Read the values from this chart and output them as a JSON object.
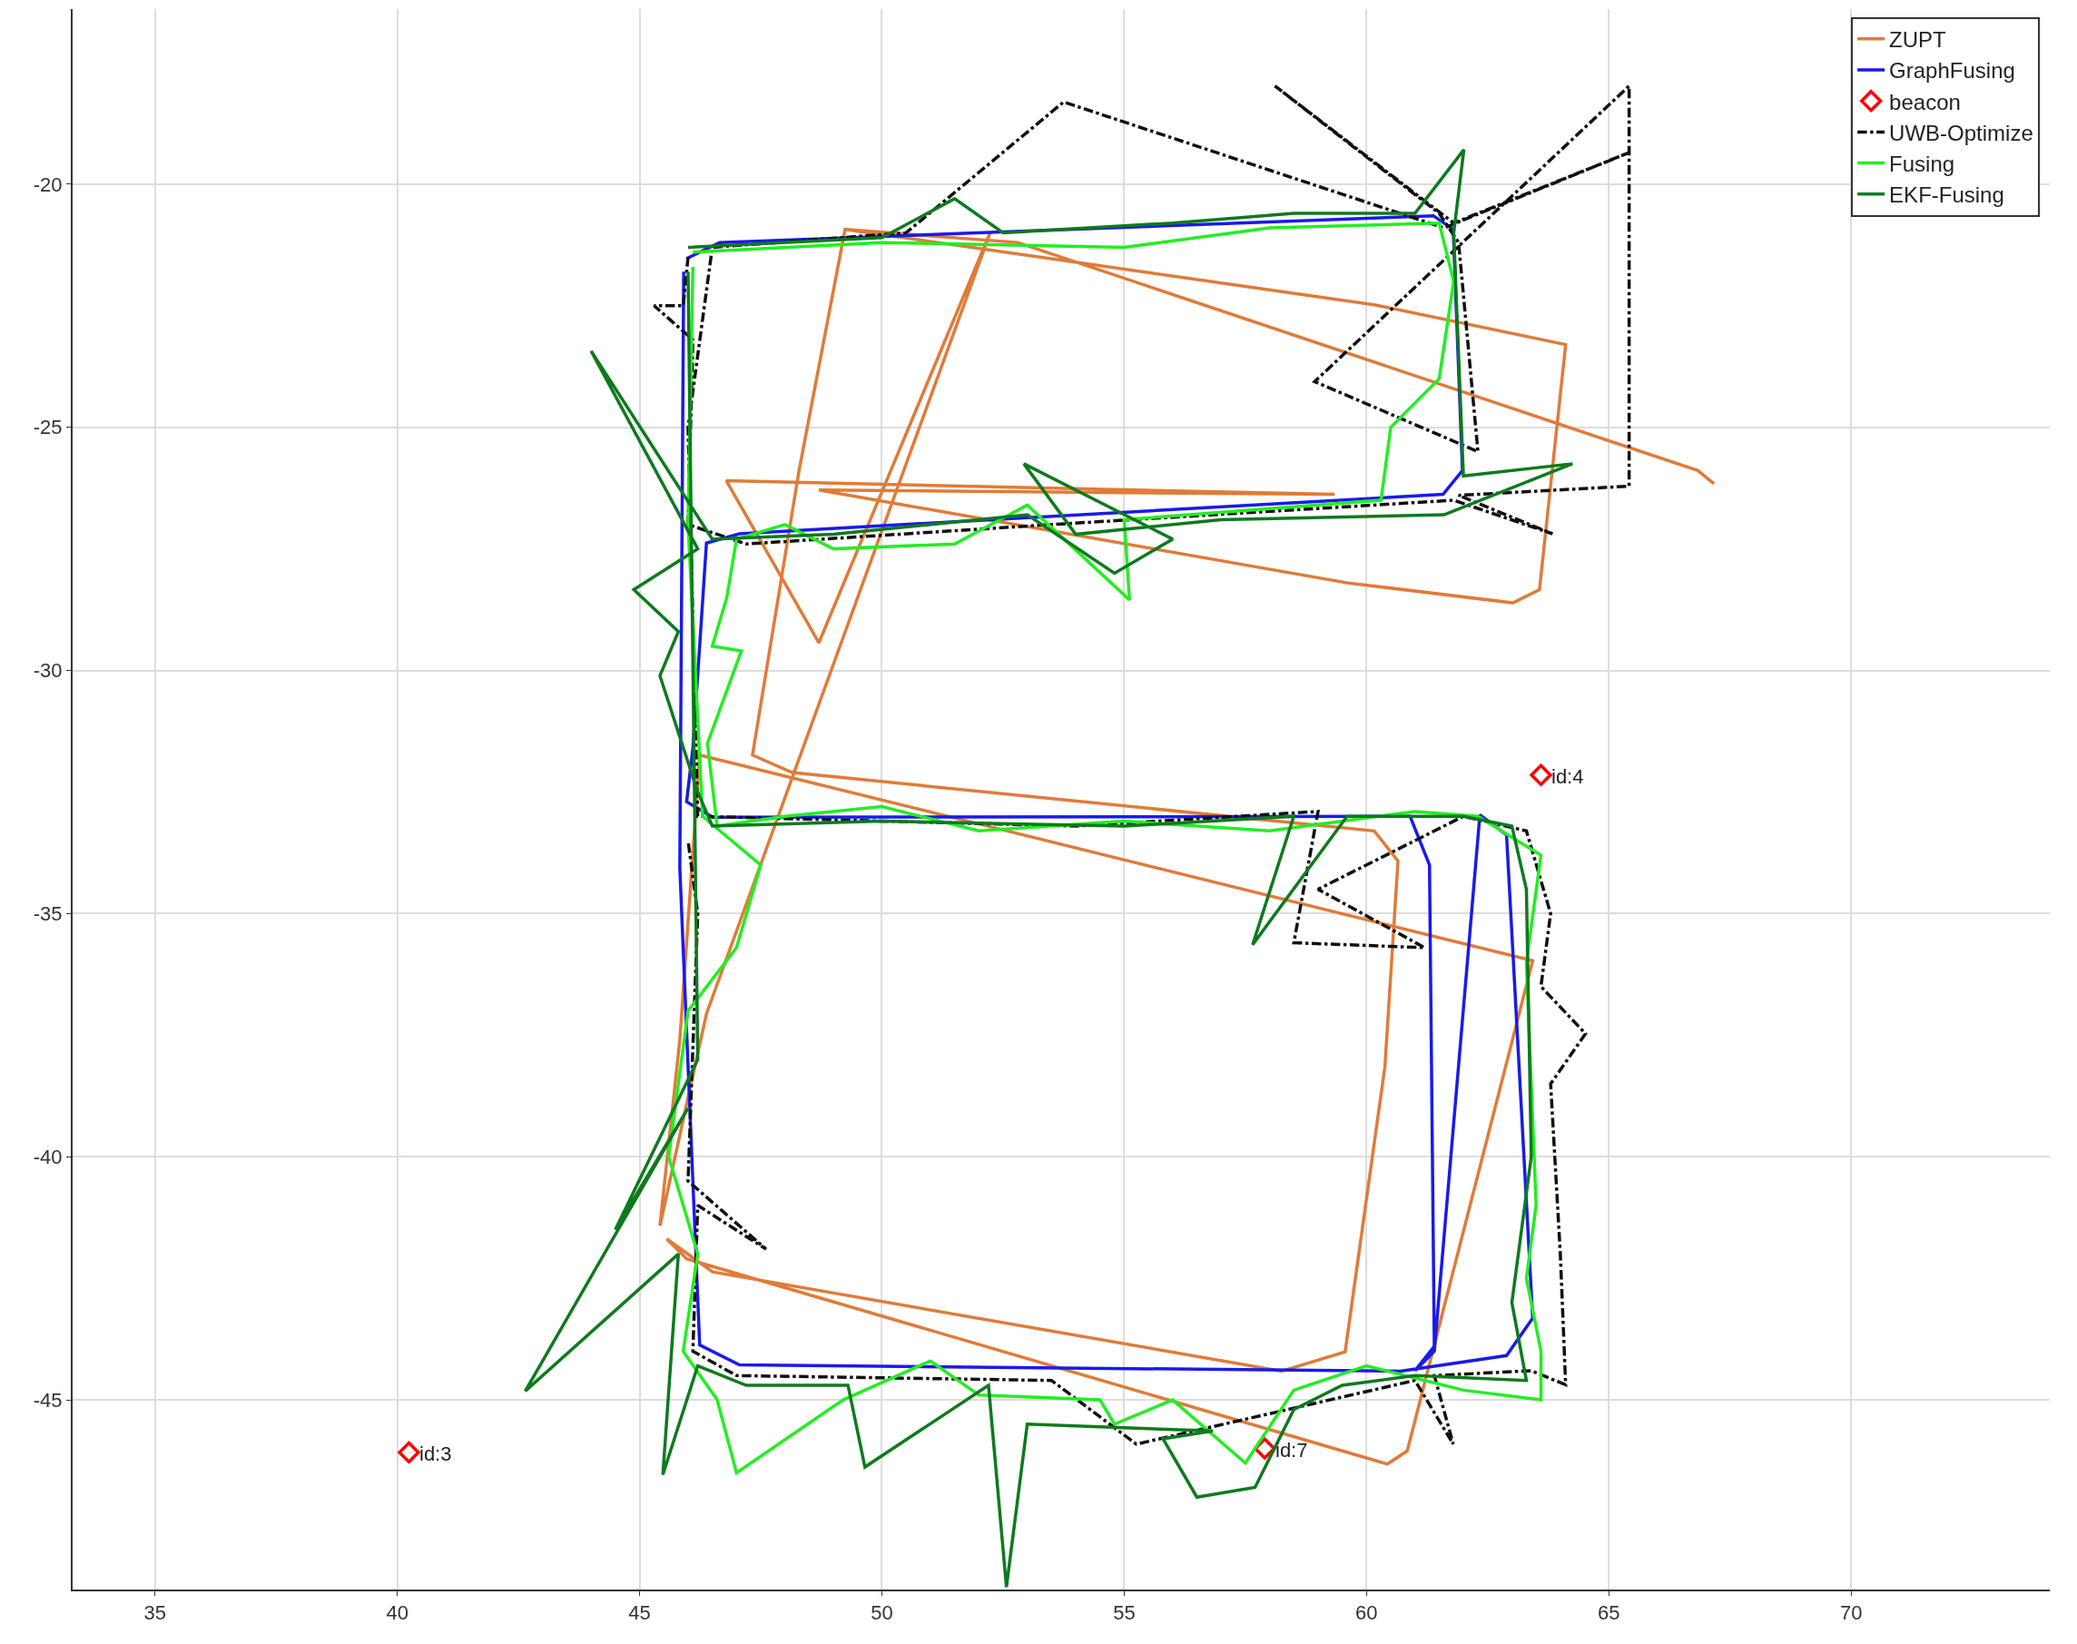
{
  "chart_data": {
    "type": "line",
    "xlim": [
      33.3,
      74.1
    ],
    "ylim": [
      -48.9,
      -16.4
    ],
    "xticks": [
      35,
      40,
      45,
      50,
      55,
      60,
      65,
      70
    ],
    "yticks": [
      -45,
      -40,
      -35,
      -30,
      -25,
      -20
    ],
    "grid": true,
    "legend": "top right",
    "annotations": [
      {
        "text": "id:3",
        "x": 40.24,
        "y": -46.08
      },
      {
        "text": "id:4",
        "x": 63.6,
        "y": -32.15
      },
      {
        "text": "id:7",
        "x": 57.9,
        "y": -46.0
      }
    ],
    "series": [
      {
        "name": "ZUPT",
        "color": "#e07b39",
        "marker": "none",
        "line_style": "solid",
        "x": [
          67.17,
          66.84,
          52.8,
          49.24,
          48.29,
          47.33,
          48.15,
          60.16,
          60.65,
          60.38,
          59.56,
          58.25,
          46.51,
          45.56,
          45.97,
          60.43,
          60.84,
          63.43,
          46.24,
          45.83,
          45.42,
          46.38,
          52.24,
          48.7,
          46.79,
          59.34,
          48.7,
          59.61,
          63.02,
          63.57,
          64.11,
          60.16,
          49.24
        ],
        "values": [
          -26.16,
          -25.89,
          -21.2,
          -20.93,
          -25.89,
          -31.74,
          -32.1,
          -33.3,
          -33.92,
          -38.15,
          -44.01,
          -44.41,
          -42.37,
          -41.69,
          -42.1,
          -46.32,
          -46.05,
          -35.97,
          -31.74,
          -37.6,
          -41.42,
          -37.06,
          -20.98,
          -29.43,
          -26.1,
          -26.38,
          -26.29,
          -28.2,
          -28.61,
          -28.34,
          -23.3,
          -22.48,
          -20.93
        ]
      },
      {
        "name": "GraphFusing",
        "color": "#1a1aeb",
        "marker": "none",
        "line_style": "solid",
        "x": [
          45.97,
          46.65,
          61.38,
          61.79,
          61.98,
          61.58,
          47.06,
          46.38,
          46.1,
          45.97,
          46.51,
          60.9,
          61.3,
          61.4,
          61.0,
          61.4,
          62.34,
          62.89,
          63.43,
          62.89,
          60.7,
          47.06,
          46.24,
          45.83,
          45.91
        ],
        "values": [
          -21.53,
          -21.2,
          -20.65,
          -20.93,
          -25.89,
          -26.38,
          -27.19,
          -27.38,
          -31.6,
          -32.7,
          -33.02,
          -33.0,
          -34.0,
          -43.9,
          -44.4,
          -44.0,
          -32.97,
          -33.38,
          -43.32,
          -44.09,
          -44.41,
          -44.28,
          -43.87,
          -34.06,
          -21.8
        ]
      },
      {
        "name": "beacon",
        "color": "#ff0000",
        "type": "scatter",
        "marker": "diamond",
        "x": [
          40.24,
          63.6,
          57.9
        ],
        "values": [
          -46.08,
          -32.15,
          -46.0
        ]
      },
      {
        "name": "UWB-Optimize",
        "color": "#111111",
        "marker": "none",
        "line_style": "dashdot",
        "x": [
          46.0,
          45.9,
          45.3,
          46.1,
          46.0,
          47.2,
          53.5,
          61.8,
          63.84,
          61.9,
          65.42,
          65.42,
          58.93,
          62.3,
          61.9,
          61.5,
          58.11,
          61.8,
          65.42,
          61.6,
          53.75,
          50.5,
          46.5,
          46.0,
          46.2,
          54.0,
          59.0,
          58.5,
          61.2,
          59.0,
          62.0,
          63.3,
          63.8,
          63.6,
          64.52,
          63.8,
          64.0,
          64.11,
          63.4,
          61.4,
          61.79,
          61.0,
          55.25,
          53.5,
          47.0,
          46.1,
          46.2,
          47.61,
          46.0,
          46.2,
          46.0
        ],
        "values": [
          -21.5,
          -22.5,
          -22.5,
          -23.2,
          -27.0,
          -27.4,
          -27.0,
          -26.5,
          -27.19,
          -26.4,
          -26.21,
          -17.98,
          -24.06,
          -25.5,
          -21.2,
          -20.6,
          -17.98,
          -20.8,
          -19.35,
          -20.9,
          -18.31,
          -21.0,
          -21.3,
          -25.0,
          -33.0,
          -33.2,
          -32.9,
          -35.6,
          -35.7,
          -34.5,
          -33.0,
          -33.3,
          -35.0,
          -36.5,
          -37.47,
          -38.5,
          -42.0,
          -44.69,
          -44.4,
          -44.5,
          -45.91,
          -44.6,
          -45.91,
          -44.6,
          -44.5,
          -44.0,
          -41.0,
          -41.9,
          -40.5,
          -35.0,
          -33.5
        ]
      },
      {
        "name": "Fusing",
        "color": "#22ee22",
        "marker": "none",
        "line_style": "solid",
        "x": [
          46.1,
          50.0,
          55.0,
          58.0,
          61.5,
          61.8,
          61.5,
          60.5,
          60.3,
          55.0,
          55.11,
          53.0,
          51.5,
          49.0,
          48.0,
          47.0,
          46.8,
          46.5,
          47.1,
          46.4,
          46.6,
          48.0,
          50.0,
          52.0,
          55.0,
          58.0,
          61.0,
          62.3,
          63.6,
          63.3,
          63.5,
          63.3,
          63.6,
          63.6,
          62.0,
          60.0,
          58.5,
          57.5,
          56.0,
          54.8,
          54.5,
          52.0,
          51.0,
          49.2,
          47.0,
          46.6,
          45.9,
          46.2,
          45.6,
          46.0,
          47.0,
          47.5,
          46.3,
          46.0,
          46.1
        ],
        "values": [
          -21.4,
          -21.2,
          -21.3,
          -20.9,
          -20.8,
          -22.0,
          -24.0,
          -25.0,
          -26.5,
          -26.9,
          -28.55,
          -26.6,
          -27.4,
          -27.5,
          -27.0,
          -27.3,
          -28.5,
          -29.5,
          -29.6,
          -31.5,
          -33.2,
          -33.0,
          -32.8,
          -33.3,
          -33.1,
          -33.3,
          -32.9,
          -33.0,
          -33.8,
          -36.0,
          -41.0,
          -42.5,
          -44.0,
          -45.0,
          -44.8,
          -44.3,
          -44.8,
          -46.3,
          -45.0,
          -45.5,
          -45.0,
          -44.9,
          -44.2,
          -45.0,
          -46.5,
          -45.0,
          -44.0,
          -42.0,
          -40.0,
          -37.0,
          -35.7,
          -34.0,
          -33.0,
          -27.0,
          -21.7
        ]
      },
      {
        "name": "EKF-Fusing",
        "color": "#0e7a1e",
        "marker": "none",
        "line_style": "solid",
        "x": [
          46.0,
          50.0,
          51.5,
          52.5,
          56.0,
          58.5,
          61.0,
          62.01,
          61.8,
          62.0,
          64.25,
          61.6,
          57.0,
          54.0,
          52.93,
          56.0,
          54.8,
          53.0,
          49.0,
          46.5,
          44.0,
          46.2,
          44.88,
          45.8,
          45.42,
          46.2,
          46.5,
          50.0,
          55.0,
          58.5,
          57.65,
          59.6,
          62.0,
          63.0,
          63.3,
          63.4,
          63.0,
          63.3,
          61.0,
          59.5,
          58.5,
          57.7,
          56.5,
          55.8,
          56.83,
          53.0,
          52.57,
          52.2,
          49.65,
          49.3,
          47.2,
          46.2,
          45.48,
          45.8,
          42.64,
          46.0,
          44.5,
          46.2,
          46.0
        ],
        "values": [
          -21.3,
          -21.1,
          -20.3,
          -21.0,
          -20.8,
          -20.6,
          -20.6,
          -19.29,
          -21.0,
          -26.0,
          -25.75,
          -26.8,
          -26.9,
          -27.2,
          -25.75,
          -27.3,
          -28.0,
          -26.8,
          -27.2,
          -27.3,
          -23.43,
          -27.5,
          -28.34,
          -29.2,
          -30.11,
          -32.5,
          -33.2,
          -33.1,
          -33.2,
          -33.0,
          -35.64,
          -33.0,
          -33.0,
          -33.2,
          -34.5,
          -40.0,
          -43.0,
          -44.6,
          -44.5,
          -44.7,
          -45.2,
          -46.8,
          -47.0,
          -45.8,
          -45.64,
          -45.5,
          -48.85,
          -44.7,
          -46.38,
          -44.7,
          -44.7,
          -44.3,
          -46.54,
          -42.0,
          -44.82,
          -39.0,
          -41.5,
          -38.0,
          -21.8
        ]
      }
    ]
  }
}
